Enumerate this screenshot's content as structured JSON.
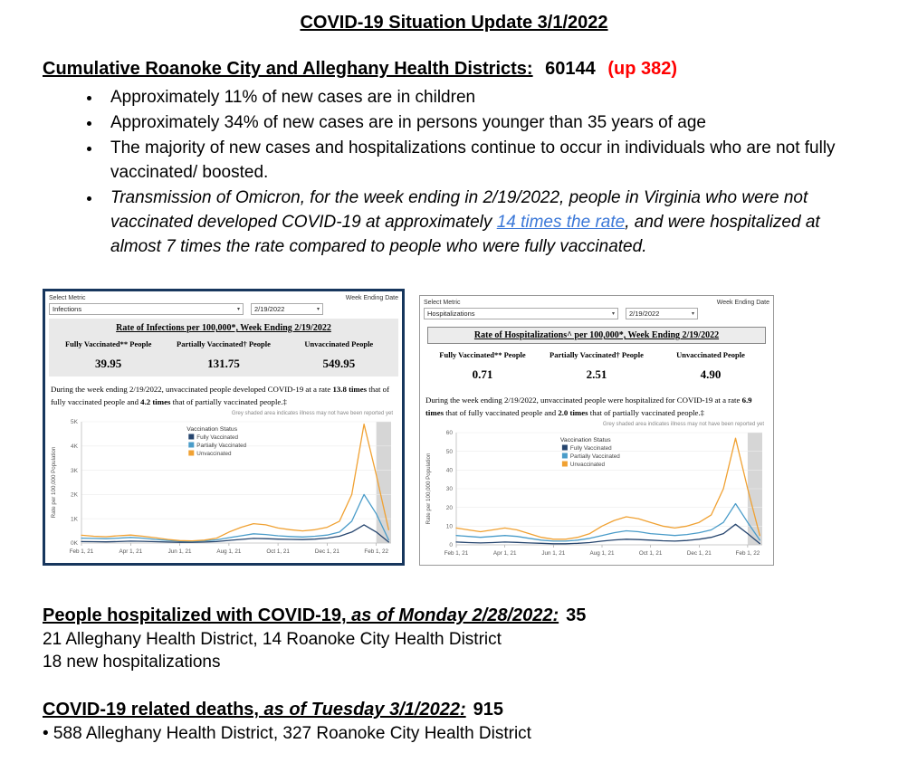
{
  "page": {
    "title": "COVID-19 Situation Update 3/1/2022"
  },
  "icons": {
    "caret_down": "▾"
  },
  "colors": {
    "fully_vaccinated": "#26456e",
    "partially_vaccinated": "#4a9cc9",
    "unvaccinated": "#f0a132",
    "change_red": "#ff0000",
    "link_blue": "#3b78d8",
    "left_panel_border": "#17365d"
  },
  "cumulative": {
    "heading": "Cumulative Roanoke City and Alleghany Health Districts:",
    "count": "60144",
    "change": "(up 382)",
    "bullets": [
      "Approximately 11% of new cases are in children",
      "Approximately 34% of new cases are in persons younger than 35 years of age",
      "The majority of new cases and hospitalizations continue to occur in individuals who are not fully vaccinated/ boosted."
    ],
    "italic_bullet": {
      "pre": "Transmission of Omicron, for the week ending in 2/19/2022, people in Virginia who were not vaccinated developed COVID-19 at approximately ",
      "link": "14 times the rate",
      "post": ", and were hospitalized at almost 7 times the rate compared to people who were fully vaccinated."
    }
  },
  "panels": [
    {
      "select_metric_label": "Select Metric",
      "week_ending_label": "Week Ending Date",
      "metric_value": "Infections",
      "date_value": "2/19/2022",
      "table_title": "Rate of Infections per 100,000*, Week Ending 2/19/2022",
      "columns": [
        "Fully Vaccinated** People",
        "Partially Vaccinated† People",
        "Unvaccinated People"
      ],
      "values": [
        "39.95",
        "131.75",
        "549.95"
      ],
      "desc": {
        "p1": "During the week ending 2/19/2022, unvaccinated people developed COVID-19 at a rate ",
        "b1": "13.8 times",
        "p2": " that of fully vaccinated people and ",
        "b2": "4.2 times",
        "p3": " that of partially vaccinated people.‡"
      },
      "grey_note": "Grey shaded area indicates illness may not have been reported yet"
    },
    {
      "select_metric_label": "Select Metric",
      "week_ending_label": "Week Ending Date",
      "metric_value": "Hospitalizations",
      "date_value": "2/19/2022",
      "table_title": "Rate of Hospitalizations^ per 100,000*, Week Ending 2/19/2022",
      "columns": [
        "Fully Vaccinated** People",
        "Partially Vaccinated† People",
        "Unvaccinated People"
      ],
      "values": [
        "0.71",
        "2.51",
        "4.90"
      ],
      "desc": {
        "p1": "During the week ending 2/19/2022, unvaccinated people were hospitalized for COVID-19 at a rate ",
        "b1": "6.9 times",
        "p2": " that of fully vaccinated people and ",
        "b2": "2.0 times",
        "p3": " that of partially vaccinated people.‡"
      },
      "grey_note": "Grey shaded area indicates illness may not have been reported yet"
    }
  ],
  "chart_data": [
    {
      "type": "line",
      "title": "Rate of Infections per 100,000*, Week Ending 2/19/2022",
      "ylabel": "Rate per 100,000 Population",
      "legend_title": "Vaccination Status",
      "legend_position": "top-center-inside",
      "grid": true,
      "ylim": [
        0,
        5000
      ],
      "yticks": [
        "0K",
        "1K",
        "2K",
        "3K",
        "4K",
        "5K"
      ],
      "xlim": [
        0,
        12.6
      ],
      "shaded_from": 12.0,
      "xticks": [
        {
          "label": "Feb 1, 21",
          "x": 0
        },
        {
          "label": "Apr 1, 21",
          "x": 2
        },
        {
          "label": "Jun 1, 21",
          "x": 4
        },
        {
          "label": "Aug 1, 21",
          "x": 6
        },
        {
          "label": "Oct 1, 21",
          "x": 8
        },
        {
          "label": "Dec 1, 21",
          "x": 10
        },
        {
          "label": "Feb 1, 22",
          "x": 12
        }
      ],
      "x": [
        0,
        0.5,
        1,
        1.5,
        2,
        2.5,
        3,
        3.5,
        4,
        4.5,
        5,
        5.5,
        6,
        6.5,
        7,
        7.5,
        8,
        8.5,
        9,
        9.5,
        10,
        10.5,
        11,
        11.5,
        12,
        12.5
      ],
      "series": [
        {
          "name": "Fully Vaccinated",
          "color": "#26456e",
          "values": [
            60,
            55,
            50,
            60,
            80,
            70,
            55,
            40,
            30,
            28,
            40,
            60,
            110,
            150,
            190,
            180,
            160,
            150,
            140,
            160,
            200,
            280,
            450,
            750,
            450,
            40
          ]
        },
        {
          "name": "Partially Vaccinated",
          "color": "#4a9cc9",
          "values": [
            200,
            190,
            180,
            200,
            230,
            200,
            150,
            110,
            80,
            70,
            90,
            130,
            220,
            300,
            380,
            350,
            300,
            270,
            250,
            280,
            330,
            450,
            900,
            2000,
            1200,
            130
          ]
        },
        {
          "name": "Unvaccinated",
          "color": "#f0a132",
          "values": [
            320,
            280,
            260,
            300,
            330,
            280,
            220,
            150,
            100,
            90,
            120,
            200,
            450,
            650,
            800,
            750,
            620,
            550,
            500,
            550,
            650,
            900,
            2000,
            4900,
            2800,
            550
          ]
        }
      ]
    },
    {
      "type": "line",
      "title": "Rate of Hospitalizations^ per 100,000*, Week Ending 2/19/2022",
      "ylabel": "Rate per 100,000 Population",
      "legend_title": "Vaccination Status",
      "legend_position": "top-center-inside",
      "grid": true,
      "ylim": [
        0,
        60
      ],
      "yticks": [
        "0",
        "10",
        "20",
        "30",
        "40",
        "50",
        "60"
      ],
      "xlim": [
        0,
        12.6
      ],
      "shaded_from": 12.0,
      "xticks": [
        {
          "label": "Feb 1, 21",
          "x": 0
        },
        {
          "label": "Apr 1, 21",
          "x": 2
        },
        {
          "label": "Jun 1, 21",
          "x": 4
        },
        {
          "label": "Aug 1, 21",
          "x": 6
        },
        {
          "label": "Oct 1, 21",
          "x": 8
        },
        {
          "label": "Dec 1, 21",
          "x": 10
        },
        {
          "label": "Feb 1, 22",
          "x": 12
        }
      ],
      "x": [
        0,
        0.5,
        1,
        1.5,
        2,
        2.5,
        3,
        3.5,
        4,
        4.5,
        5,
        5.5,
        6,
        6.5,
        7,
        7.5,
        8,
        8.5,
        9,
        9.5,
        10,
        10.5,
        11,
        11.5,
        12,
        12.5
      ],
      "series": [
        {
          "name": "Fully Vaccinated",
          "color": "#26456e",
          "values": [
            1.5,
            1.2,
            1,
            1.2,
            1.5,
            1.3,
            1,
            0.8,
            0.6,
            0.6,
            0.8,
            1.2,
            2,
            2.6,
            3,
            2.8,
            2.5,
            2.2,
            2,
            2.3,
            3,
            4,
            6,
            11,
            6,
            0.7
          ]
        },
        {
          "name": "Partially Vaccinated",
          "color": "#4a9cc9",
          "values": [
            5,
            4.5,
            4,
            4.5,
            5,
            4.5,
            3.5,
            2.5,
            2,
            2,
            2.5,
            3.5,
            5,
            6.5,
            7.5,
            7,
            6,
            5.5,
            5,
            5.5,
            6.5,
            8,
            12,
            22,
            12,
            2.5
          ]
        },
        {
          "name": "Unvaccinated",
          "color": "#f0a132",
          "values": [
            9,
            8,
            7,
            8,
            9,
            8,
            6,
            4,
            3,
            3,
            4,
            6,
            10,
            13,
            15,
            14,
            12,
            10,
            9,
            10,
            12,
            16,
            30,
            57,
            30,
            5
          ]
        }
      ]
    }
  ],
  "hospitalized": {
    "heading": "People hospitalized with COVID-19,",
    "heading_italic": " as of Monday 2/28/2022:",
    "count": "35",
    "line1": "21 Alleghany Health District, 14 Roanoke City Health District",
    "line2": "18 new hospitalizations"
  },
  "deaths": {
    "heading": "COVID-19 related deaths,",
    "heading_italic": " as of Tuesday 3/1/2022:",
    "count": "915",
    "line1": "• 588 Alleghany Health District, 327 Roanoke City Health District"
  }
}
